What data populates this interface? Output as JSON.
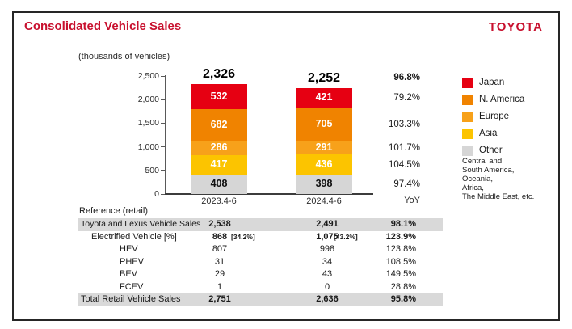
{
  "header": {
    "title": "Consolidated Vehicle Sales",
    "brand": "TOYOTA",
    "accent_color": "#c8102e"
  },
  "chart": {
    "units_label": "(thousands of vehicles)",
    "yoy_label": "YoY"
  },
  "chart_data": {
    "type": "bar",
    "stacked": true,
    "title": "Consolidated Vehicle Sales",
    "ylabel": "(thousands of vehicles)",
    "categories": [
      "2023.4-6",
      "2024.4-6"
    ],
    "series": [
      {
        "name": "Japan",
        "color": "#e60012",
        "text_color": "#ffffff",
        "values": [
          532,
          421
        ],
        "yoy": "79.2%"
      },
      {
        "name": "N. America",
        "color": "#f08300",
        "text_color": "#ffffff",
        "values": [
          682,
          705
        ],
        "yoy": "103.3%"
      },
      {
        "name": "Europe",
        "color": "#f7a11a",
        "text_color": "#ffffff",
        "values": [
          286,
          291
        ],
        "yoy": "101.7%"
      },
      {
        "name": "Asia",
        "color": "#fcc400",
        "text_color": "#ffffff",
        "values": [
          417,
          436
        ],
        "yoy": "104.5%"
      },
      {
        "name": "Other",
        "color": "#d6d6d6",
        "text_color": "#111111",
        "values": [
          408,
          398
        ],
        "yoy": "97.4%"
      }
    ],
    "totals": [
      2326,
      2252
    ],
    "totals_yoy": "96.8%",
    "ylim": [
      0,
      2500
    ],
    "y_ticks": [
      {
        "v": 2500,
        "label": "2,500"
      },
      {
        "v": 2000,
        "label": "2,000"
      },
      {
        "v": 1500,
        "label": "1,500"
      },
      {
        "v": 1000,
        "label": "1,000"
      },
      {
        "v": 500,
        "label": "500"
      },
      {
        "v": 0,
        "label": "0"
      }
    ],
    "grid": false,
    "legend_position": "right",
    "legend_note_lines": [
      "Central and",
      "South America,",
      "Oceania,",
      "Africa,",
      "The Middle East, etc."
    ]
  },
  "table": {
    "caption": "Reference (retail)",
    "rows": [
      {
        "label": "Toyota and Lexus Vehicle Sales",
        "indent": 0,
        "small_label": true,
        "v2023": "2,538",
        "v2024": "2,491",
        "yoy": "98.1%",
        "gray": true,
        "bold": true
      },
      {
        "label": "Electrified Vehicle [%]",
        "indent": 1,
        "v2023": "868",
        "v2023_note": "[34.2%]",
        "v2024": "1,075",
        "v2024_note": "[43.2%]",
        "yoy": "123.9%",
        "bold": true
      },
      {
        "label": "HEV",
        "indent": 2,
        "v2023": "807",
        "v2024": "998",
        "yoy": "123.8%"
      },
      {
        "label": "PHEV",
        "indent": 2,
        "v2023": "31",
        "v2024": "34",
        "yoy": "108.5%"
      },
      {
        "label": "BEV",
        "indent": 2,
        "v2023": "29",
        "v2024": "43",
        "yoy": "149.5%"
      },
      {
        "label": "FCEV",
        "indent": 2,
        "v2023": "1",
        "v2024": "0",
        "yoy": "28.8%"
      },
      {
        "label": "Total Retail Vehicle Sales",
        "indent": 0,
        "v2023": "2,751",
        "v2024": "2,636",
        "yoy": "95.8%",
        "gray": true,
        "bold": true
      }
    ]
  }
}
